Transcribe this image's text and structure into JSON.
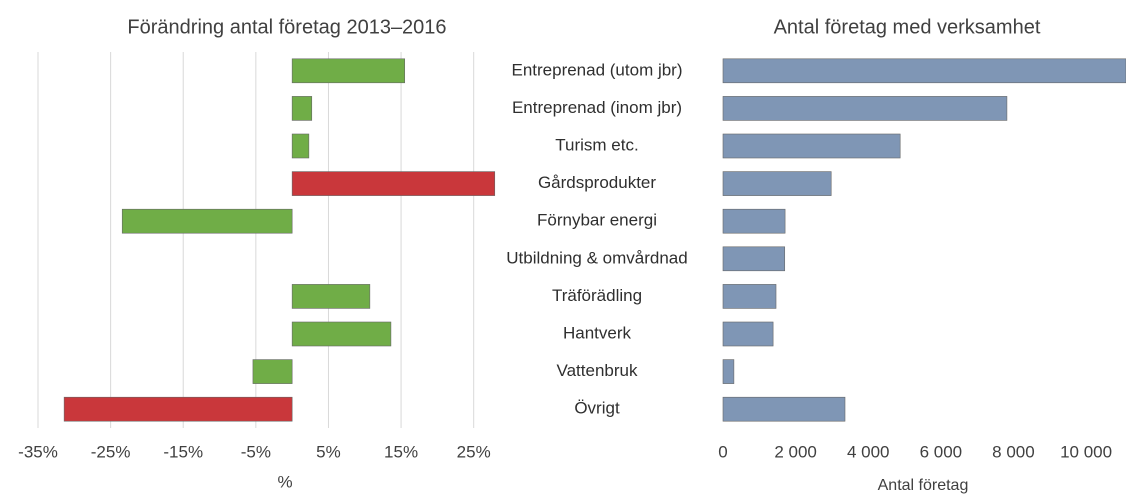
{
  "chart_data": [
    {
      "type": "bar",
      "orientation": "horizontal",
      "title": "Förändring antal företag 2013–2016",
      "xlabel": "%",
      "categories": [
        "Entreprenad (utom jbr)",
        "Entreprenad (inom jbr)",
        "Turism etc.",
        "Gårdsprodukter",
        "Förnybar energi",
        "Utbildning & omvårdnad",
        "Träförädling",
        "Hantverk",
        "Vattenbruk",
        "Övrigt"
      ],
      "values": [
        15.5,
        2.7,
        2.3,
        27.9,
        -23.4,
        null,
        10.7,
        13.6,
        -5.4,
        -31.4
      ],
      "colors": [
        "#70ad47",
        "#70ad47",
        "#70ad47",
        "#c9373b",
        "#70ad47",
        "#70ad47",
        "#70ad47",
        "#70ad47",
        "#70ad47",
        "#c9373b"
      ],
      "xlim": [
        -35,
        30
      ],
      "xticks": [
        {
          "value": -35,
          "label": "-35%"
        },
        {
          "value": -25,
          "label": "-25%"
        },
        {
          "value": -15,
          "label": "-15%"
        },
        {
          "value": -5,
          "label": "-5%"
        },
        {
          "value": 5,
          "label": "5%"
        },
        {
          "value": 15,
          "label": "15%"
        },
        {
          "value": 25,
          "label": "25%"
        }
      ],
      "grid": true
    },
    {
      "type": "bar",
      "orientation": "horizontal",
      "title": "Antal företag med verksamhet",
      "xlabel": "Antal företag",
      "values": [
        11100,
        7820,
        4880,
        2980,
        1710,
        1700,
        1460,
        1380,
        300,
        3360
      ],
      "color": "#7f96b5",
      "xlim": [
        0,
        11100
      ],
      "xticks": [
        0,
        {
          "value": 2000,
          "label": "2 000"
        },
        {
          "value": 4000,
          "label": "4 000"
        },
        {
          "value": 6000,
          "label": "6 000"
        },
        {
          "value": 8000,
          "label": "8 000"
        },
        {
          "value": 10000,
          "label": "10 000"
        }
      ],
      "grid": false
    }
  ]
}
